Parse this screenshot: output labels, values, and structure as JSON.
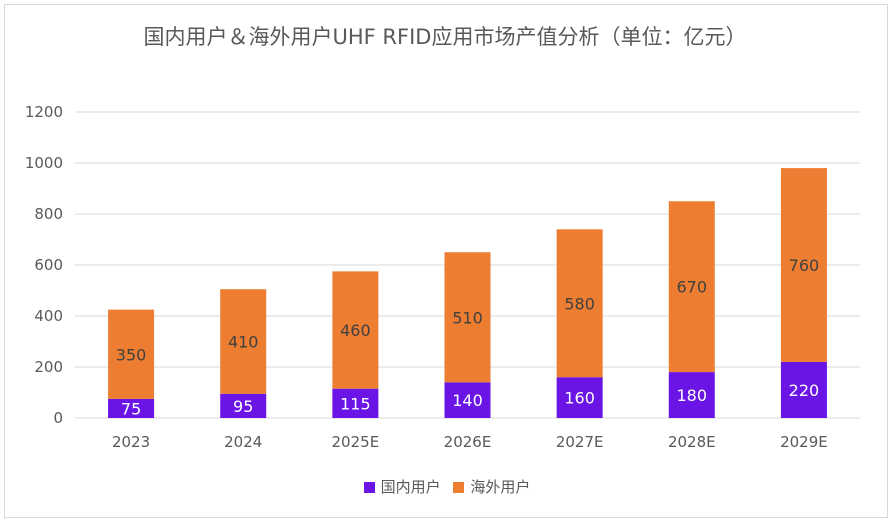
{
  "chart_data": {
    "type": "bar",
    "stacked": true,
    "title": "国内用户＆海外用户UHF RFID应用市场产值分析（单位：亿元）",
    "categories": [
      "2023",
      "2024",
      "2025E",
      "2026E",
      "2027E",
      "2028E",
      "2029E"
    ],
    "series": [
      {
        "name": "国内用户",
        "color": "#6a14e6",
        "values": [
          75,
          95,
          115,
          140,
          160,
          180,
          220
        ]
      },
      {
        "name": "海外用户",
        "color": "#ed7d31",
        "values": [
          350,
          410,
          460,
          510,
          580,
          670,
          760
        ]
      }
    ],
    "ylim": [
      0,
      1200
    ],
    "yticks": [
      0,
      200,
      400,
      600,
      800,
      1000,
      1200
    ],
    "grid": true,
    "legend": "bottom",
    "xlabel": "",
    "ylabel": ""
  }
}
